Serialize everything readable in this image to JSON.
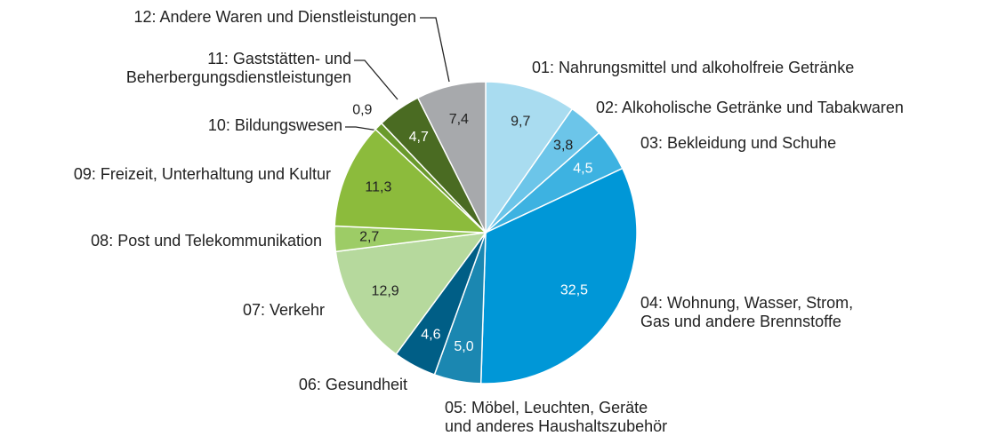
{
  "chart_data": {
    "type": "pie",
    "categories": [
      "01: Nahrungsmittel und alkoholfreie Getränke",
      "02: Alkoholische Getränke und Tabakwaren",
      "03: Bekleidung und Schuhe",
      "04: Wohnung, Wasser, Strom,\nGas und andere Brennstoffe",
      "05: Möbel, Leuchten, Geräte\nund anderes Haushaltszubehör",
      "06: Gesundheit",
      "07: Verkehr",
      "08: Post und Telekommunikation",
      "09: Freizeit, Unterhaltung und Kultur",
      "10: Bildungswesen",
      "11: Gaststätten- und\nBeherbergungsdienstleistungen",
      "12: Andere Waren und Dienstleistungen"
    ],
    "values": [
      9.7,
      3.8,
      4.5,
      32.5,
      5.0,
      4.6,
      12.9,
      2.7,
      11.3,
      0.9,
      4.7,
      7.4
    ],
    "value_labels": [
      "9,7",
      "3,8",
      "4,5",
      "32,5",
      "5,0",
      "4,6",
      "12,9",
      "2,7",
      "11,3",
      "0,9",
      "4,7",
      "7,4"
    ],
    "colors": [
      "#a9dcf0",
      "#6cc5e9",
      "#3db2e1",
      "#0097d7",
      "#1b87b1",
      "#005e86",
      "#b6d99d",
      "#9dcc66",
      "#8cbb3c",
      "#6a9a2c",
      "#4a6b22",
      "#a7a9ac"
    ]
  }
}
